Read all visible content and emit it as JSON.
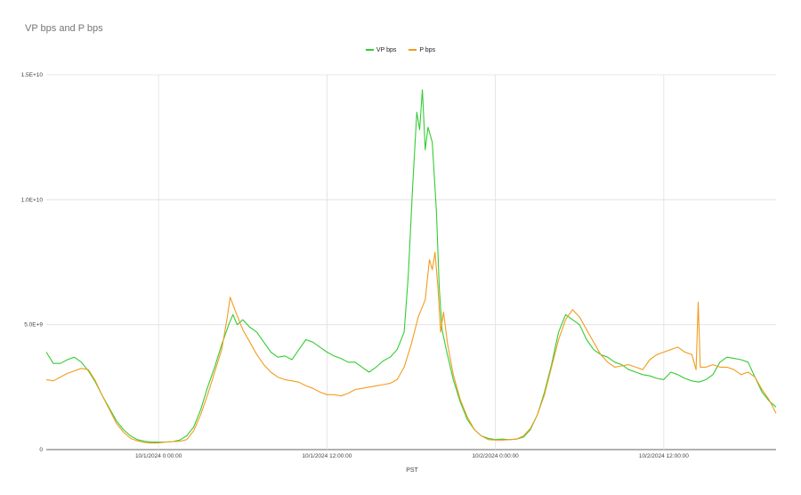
{
  "chart_data": {
    "type": "line",
    "title": "VP bps and P bps",
    "xlabel": "PST",
    "ylabel": "",
    "x_unit": "hours after 9/30/2024 16:00 PST",
    "xlim_hours": [
      0,
      52
    ],
    "ylim": [
      0,
      15000000000
    ],
    "y_ticks": [
      {
        "value": 0,
        "label": "0"
      },
      {
        "value": 5000000000,
        "label": "5.0E+9"
      },
      {
        "value": 10000000000,
        "label": "1.0E+10"
      },
      {
        "value": 15000000000,
        "label": "1.5E+10"
      }
    ],
    "x_ticks": [
      {
        "value": 8,
        "label": "10/1/2024 0:00:00"
      },
      {
        "value": 20,
        "label": "10/1/2024 12:00:00"
      },
      {
        "value": 32,
        "label": "10/2/2024 0:00:00"
      },
      {
        "value": 44,
        "label": "10/2/2024 12:00:00"
      }
    ],
    "grid": true,
    "legend_position": "top",
    "series": [
      {
        "name": "VP bps",
        "color": "#33cc33",
        "points": [
          [
            0,
            3900000000
          ],
          [
            0.5,
            3450000000
          ],
          [
            1,
            3450000000
          ],
          [
            1.5,
            3600000000
          ],
          [
            2,
            3700000000
          ],
          [
            2.5,
            3500000000
          ],
          [
            3,
            3150000000
          ],
          [
            3.5,
            2700000000
          ],
          [
            4,
            2150000000
          ],
          [
            4.5,
            1650000000
          ],
          [
            5,
            1150000000
          ],
          [
            5.5,
            800000000
          ],
          [
            6,
            550000000
          ],
          [
            6.5,
            400000000
          ],
          [
            7,
            330000000
          ],
          [
            7.5,
            300000000
          ],
          [
            8,
            300000000
          ],
          [
            8.5,
            300000000
          ],
          [
            9,
            320000000
          ],
          [
            9.5,
            380000000
          ],
          [
            10,
            550000000
          ],
          [
            10.5,
            900000000
          ],
          [
            11,
            1600000000
          ],
          [
            11.5,
            2500000000
          ],
          [
            12,
            3300000000
          ],
          [
            12.5,
            4200000000
          ],
          [
            13,
            5000000000
          ],
          [
            13.3,
            5400000000
          ],
          [
            13.6,
            5000000000
          ],
          [
            14,
            5200000000
          ],
          [
            14.5,
            4900000000
          ],
          [
            15,
            4700000000
          ],
          [
            15.5,
            4300000000
          ],
          [
            16,
            3900000000
          ],
          [
            16.5,
            3700000000
          ],
          [
            17,
            3750000000
          ],
          [
            17.5,
            3600000000
          ],
          [
            18,
            4000000000
          ],
          [
            18.5,
            4400000000
          ],
          [
            19,
            4300000000
          ],
          [
            19.5,
            4100000000
          ],
          [
            20,
            3900000000
          ],
          [
            20.5,
            3750000000
          ],
          [
            21,
            3650000000
          ],
          [
            21.5,
            3500000000
          ],
          [
            22,
            3500000000
          ],
          [
            22.5,
            3300000000
          ],
          [
            23,
            3100000000
          ],
          [
            23.5,
            3300000000
          ],
          [
            24,
            3550000000
          ],
          [
            24.5,
            3700000000
          ],
          [
            25,
            4000000000
          ],
          [
            25.5,
            4700000000
          ],
          [
            25.8,
            7000000000
          ],
          [
            26.1,
            10500000000
          ],
          [
            26.4,
            13500000000
          ],
          [
            26.6,
            12800000000
          ],
          [
            26.8,
            14400000000
          ],
          [
            27,
            12000000000
          ],
          [
            27.2,
            12900000000
          ],
          [
            27.5,
            12300000000
          ],
          [
            27.8,
            9500000000
          ],
          [
            28,
            6500000000
          ],
          [
            28.2,
            4800000000
          ],
          [
            28.5,
            4000000000
          ],
          [
            29,
            2800000000
          ],
          [
            29.5,
            1900000000
          ],
          [
            30,
            1200000000
          ],
          [
            30.5,
            800000000
          ],
          [
            31,
            550000000
          ],
          [
            31.5,
            450000000
          ],
          [
            32,
            400000000
          ],
          [
            32.5,
            420000000
          ],
          [
            33,
            400000000
          ],
          [
            33.5,
            420000000
          ],
          [
            34,
            500000000
          ],
          [
            34.5,
            800000000
          ],
          [
            35,
            1400000000
          ],
          [
            35.5,
            2300000000
          ],
          [
            36,
            3400000000
          ],
          [
            36.5,
            4700000000
          ],
          [
            37,
            5400000000
          ],
          [
            37.5,
            5200000000
          ],
          [
            38,
            5000000000
          ],
          [
            38.5,
            4400000000
          ],
          [
            39,
            4000000000
          ],
          [
            39.5,
            3800000000
          ],
          [
            40,
            3700000000
          ],
          [
            40.5,
            3500000000
          ],
          [
            41,
            3400000000
          ],
          [
            41.5,
            3200000000
          ],
          [
            42,
            3100000000
          ],
          [
            42.5,
            3000000000
          ],
          [
            43,
            2950000000
          ],
          [
            43.5,
            2850000000
          ],
          [
            44,
            2800000000
          ],
          [
            44.5,
            3100000000
          ],
          [
            45,
            3000000000
          ],
          [
            45.5,
            2850000000
          ],
          [
            46,
            2750000000
          ],
          [
            46.5,
            2700000000
          ],
          [
            47,
            2800000000
          ],
          [
            47.5,
            3000000000
          ],
          [
            48,
            3500000000
          ],
          [
            48.5,
            3700000000
          ],
          [
            49,
            3650000000
          ],
          [
            49.5,
            3600000000
          ],
          [
            50,
            3500000000
          ],
          [
            50.5,
            2900000000
          ],
          [
            51,
            2300000000
          ],
          [
            51.5,
            1950000000
          ],
          [
            52,
            1700000000
          ]
        ]
      },
      {
        "name": "P bps",
        "color": "#f39c1f",
        "points": [
          [
            0,
            2800000000
          ],
          [
            0.5,
            2750000000
          ],
          [
            1,
            2900000000
          ],
          [
            1.5,
            3050000000
          ],
          [
            2,
            3150000000
          ],
          [
            2.5,
            3250000000
          ],
          [
            3,
            3200000000
          ],
          [
            3.5,
            2750000000
          ],
          [
            4,
            2150000000
          ],
          [
            4.5,
            1600000000
          ],
          [
            5,
            1050000000
          ],
          [
            5.5,
            700000000
          ],
          [
            6,
            450000000
          ],
          [
            6.5,
            350000000
          ],
          [
            7,
            280000000
          ],
          [
            7.5,
            260000000
          ],
          [
            8,
            270000000
          ],
          [
            8.5,
            300000000
          ],
          [
            9,
            320000000
          ],
          [
            9.5,
            330000000
          ],
          [
            10,
            400000000
          ],
          [
            10.5,
            750000000
          ],
          [
            11,
            1400000000
          ],
          [
            11.5,
            2200000000
          ],
          [
            12,
            3100000000
          ],
          [
            12.5,
            4000000000
          ],
          [
            12.9,
            5300000000
          ],
          [
            13.1,
            6100000000
          ],
          [
            13.5,
            5500000000
          ],
          [
            14,
            4800000000
          ],
          [
            14.5,
            4300000000
          ],
          [
            15,
            3800000000
          ],
          [
            15.5,
            3400000000
          ],
          [
            16,
            3100000000
          ],
          [
            16.5,
            2900000000
          ],
          [
            17,
            2800000000
          ],
          [
            17.5,
            2750000000
          ],
          [
            18,
            2700000000
          ],
          [
            18.5,
            2550000000
          ],
          [
            19,
            2450000000
          ],
          [
            19.5,
            2300000000
          ],
          [
            20,
            2200000000
          ],
          [
            20.5,
            2200000000
          ],
          [
            21,
            2150000000
          ],
          [
            21.5,
            2250000000
          ],
          [
            22,
            2400000000
          ],
          [
            22.5,
            2450000000
          ],
          [
            23,
            2500000000
          ],
          [
            23.5,
            2550000000
          ],
          [
            24,
            2600000000
          ],
          [
            24.5,
            2650000000
          ],
          [
            25,
            2800000000
          ],
          [
            25.5,
            3300000000
          ],
          [
            26,
            4200000000
          ],
          [
            26.5,
            5300000000
          ],
          [
            27,
            6000000000
          ],
          [
            27.3,
            7600000000
          ],
          [
            27.5,
            7200000000
          ],
          [
            27.7,
            7900000000
          ],
          [
            27.9,
            6500000000
          ],
          [
            28.1,
            4700000000
          ],
          [
            28.3,
            5500000000
          ],
          [
            28.6,
            4200000000
          ],
          [
            29,
            3000000000
          ],
          [
            29.5,
            2000000000
          ],
          [
            30,
            1300000000
          ],
          [
            30.5,
            800000000
          ],
          [
            31,
            550000000
          ],
          [
            31.5,
            400000000
          ],
          [
            32,
            380000000
          ],
          [
            32.5,
            380000000
          ],
          [
            33,
            400000000
          ],
          [
            33.5,
            420000000
          ],
          [
            34,
            550000000
          ],
          [
            34.5,
            850000000
          ],
          [
            35,
            1400000000
          ],
          [
            35.5,
            2200000000
          ],
          [
            36,
            3300000000
          ],
          [
            36.5,
            4400000000
          ],
          [
            37,
            5200000000
          ],
          [
            37.5,
            5600000000
          ],
          [
            38,
            5300000000
          ],
          [
            38.5,
            4800000000
          ],
          [
            39,
            4300000000
          ],
          [
            39.5,
            3800000000
          ],
          [
            40,
            3500000000
          ],
          [
            40.5,
            3300000000
          ],
          [
            41,
            3350000000
          ],
          [
            41.5,
            3400000000
          ],
          [
            42,
            3300000000
          ],
          [
            42.5,
            3200000000
          ],
          [
            43,
            3600000000
          ],
          [
            43.5,
            3800000000
          ],
          [
            44,
            3900000000
          ],
          [
            44.5,
            4000000000
          ],
          [
            45,
            4100000000
          ],
          [
            45.5,
            3900000000
          ],
          [
            46,
            3800000000
          ],
          [
            46.3,
            3200000000
          ],
          [
            46.45,
            5900000000
          ],
          [
            46.6,
            3300000000
          ],
          [
            47,
            3300000000
          ],
          [
            47.5,
            3400000000
          ],
          [
            48,
            3300000000
          ],
          [
            48.5,
            3300000000
          ],
          [
            49,
            3200000000
          ],
          [
            49.5,
            3000000000
          ],
          [
            50,
            3100000000
          ],
          [
            50.5,
            2900000000
          ],
          [
            51,
            2400000000
          ],
          [
            51.5,
            2000000000
          ],
          [
            52,
            1450000000
          ]
        ]
      }
    ]
  }
}
